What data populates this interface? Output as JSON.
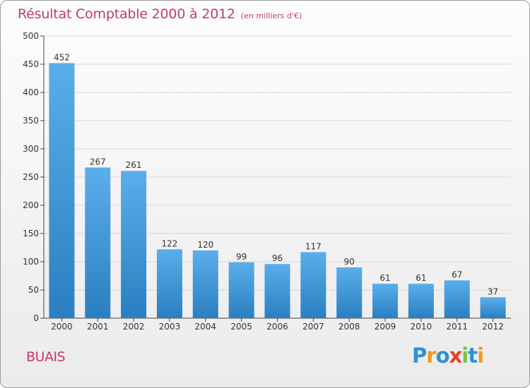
{
  "title": "Résultat Comptable 2000 à 2012",
  "subtitle": "(en milliers d'€)",
  "commune": "BUAIS",
  "logo": {
    "letters": [
      "P",
      "r",
      "o",
      "x",
      "i",
      "t",
      "i"
    ],
    "colors": [
      "#2f8fd8",
      "#f29a1c",
      "#2f8fd8",
      "#e8402e",
      "#7cc242",
      "#2f8fd8",
      "#f29a1c"
    ]
  },
  "colors": {
    "title": "#c33b6b",
    "bar_top": "#5aaeea",
    "bar_bottom": "#2a7fc0",
    "grid": "#d8d8d8",
    "axis": "#444444"
  },
  "chart_data": {
    "type": "bar",
    "title": "Résultat Comptable 2000 à 2012",
    "subtitle": "(en milliers d'€)",
    "categories": [
      "2000",
      "2001",
      "2002",
      "2003",
      "2004",
      "2005",
      "2006",
      "2007",
      "2008",
      "2009",
      "2010",
      "2011",
      "2012"
    ],
    "values": [
      452,
      267,
      261,
      122,
      120,
      99,
      96,
      117,
      90,
      61,
      61,
      67,
      37
    ],
    "data_labels": [
      "452",
      "267",
      "261",
      "122",
      "120",
      "99",
      "96",
      "117",
      "90",
      "61",
      "61",
      "67",
      "37"
    ],
    "ylim": [
      0,
      500
    ],
    "yticks": [
      0,
      50,
      100,
      150,
      200,
      250,
      300,
      350,
      400,
      450,
      500
    ],
    "xlabel": "",
    "ylabel": "",
    "grid": true
  }
}
